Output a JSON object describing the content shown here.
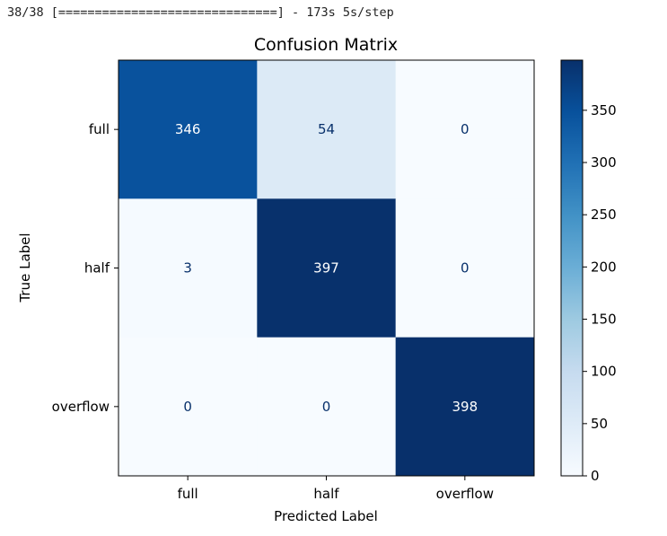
{
  "output": {
    "progress_line": "38/38 [==============================] - 173s 5s/step"
  },
  "chart_data": {
    "type": "heatmap",
    "title": "Confusion Matrix",
    "xlabel": "Predicted Label",
    "ylabel": "True Label",
    "x_categories": [
      "full",
      "half",
      "overflow"
    ],
    "y_categories": [
      "full",
      "half",
      "overflow"
    ],
    "values": [
      [
        346,
        54,
        0
      ],
      [
        3,
        397,
        0
      ],
      [
        0,
        0,
        398
      ]
    ],
    "colormap": "Blues",
    "colorbar": {
      "min": 0,
      "max": 398,
      "ticks": [
        0,
        50,
        100,
        150,
        200,
        250,
        300,
        350
      ]
    },
    "colors": {
      "low": "#f7fbff",
      "high": "#08306b",
      "text_dark_cell": "#ffffff",
      "text_light_cell": "#08306b"
    }
  }
}
